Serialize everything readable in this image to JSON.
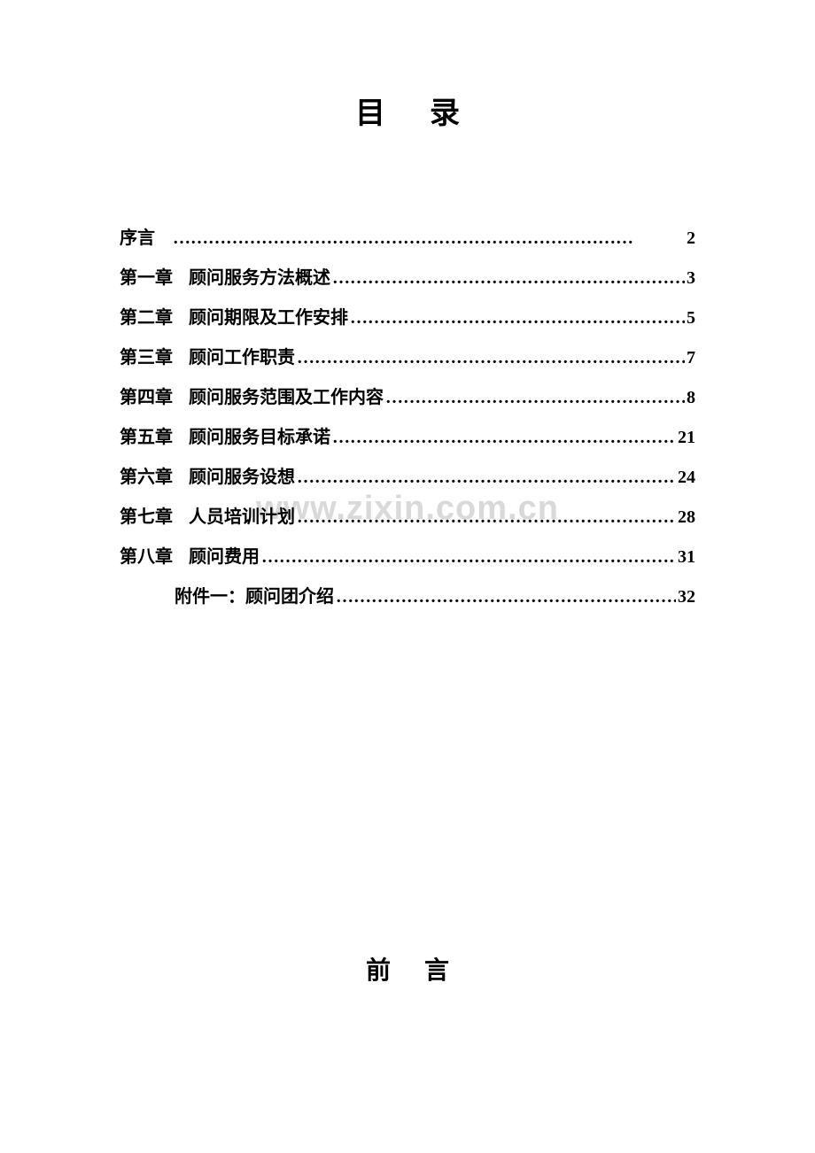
{
  "title1": "目录",
  "title2": "前言",
  "watermark": "www.zixin.com.cn",
  "dots_long": "……………………………………………………………………",
  "toc": [
    {
      "chapter": "序言",
      "name": "",
      "page": "2",
      "indent": false
    },
    {
      "chapter": "第一章",
      "name": "顾问服务方法概述",
      "page": "3",
      "indent": false
    },
    {
      "chapter": "第二章",
      "name": "顾问期限及工作安排 ",
      "page": "5",
      "indent": false
    },
    {
      "chapter": "第三章",
      "name": "顾问工作职责",
      "page": "7",
      "indent": false
    },
    {
      "chapter": "第四章",
      "name": "顾问服务范围及工作内容",
      "page": "8",
      "indent": false
    },
    {
      "chapter": "第五章",
      "name": "顾问服务目标承诺",
      "page": "21",
      "indent": false
    },
    {
      "chapter": "第六章",
      "name": "顾问服务设想  ",
      "page": "24",
      "indent": false
    },
    {
      "chapter": "第七章",
      "name": "人员培训计划",
      "page": "28",
      "indent": false
    },
    {
      "chapter": "第八章",
      "name": "顾问费用",
      "page": "31",
      "indent": false
    },
    {
      "chapter": "",
      "name": "附件一：顾问团介绍",
      "page": "32",
      "indent": true
    }
  ],
  "colors": {
    "background": "#ffffff",
    "text": "#000000",
    "watermark": "rgba(180,180,180,0.5)"
  },
  "typography": {
    "title_fontsize_pt": 26,
    "body_fontsize_pt": 15,
    "font_family": "SimSun"
  }
}
